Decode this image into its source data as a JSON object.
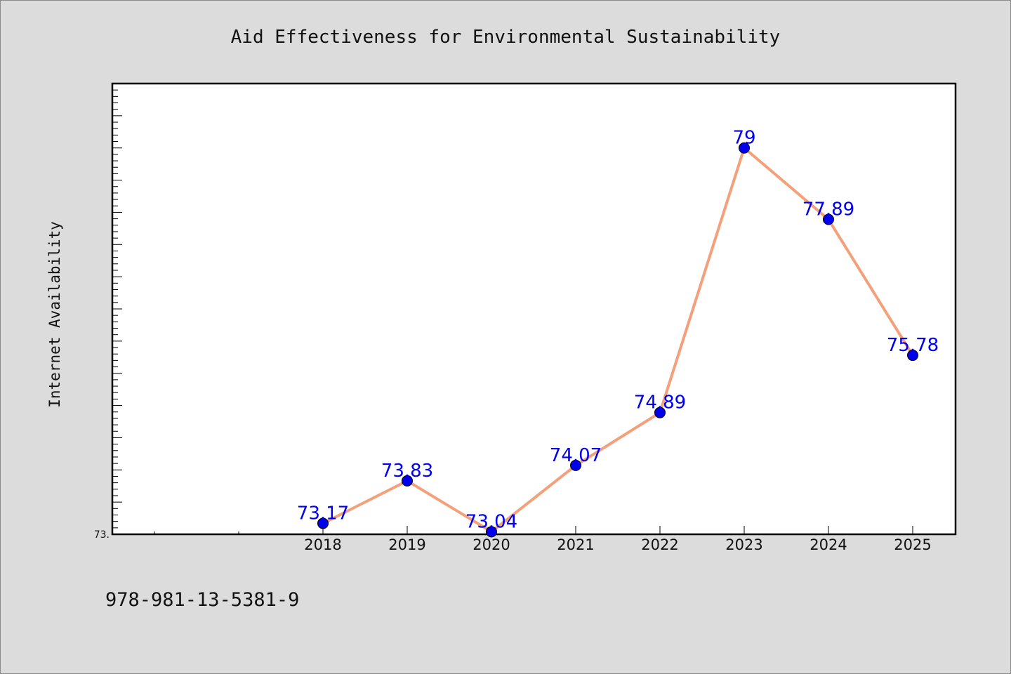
{
  "chart_data": {
    "type": "line",
    "title": "Aid Effectiveness for Environmental Sustainability",
    "xlabel": "",
    "ylabel": "Internet Availability",
    "categories": [
      "2018",
      "2019",
      "2020",
      "2021",
      "2022",
      "2023",
      "2024",
      "2025"
    ],
    "series": [
      {
        "values": [
          73.17,
          73.83,
          73.04,
          74.07,
          74.89,
          79,
          77.89,
          75.78
        ],
        "data_labels": [
          "73.17",
          "73.83",
          "73.04",
          "74.07",
          "74.89",
          "79",
          "77.89",
          "75.78"
        ]
      }
    ],
    "ylim": [
      73.0,
      80.0
    ],
    "y_tick_labels": [
      "73."
    ],
    "grid": false,
    "line_color": "#f4a07a",
    "marker_color": "#0000ee",
    "label_color": "#0000ee"
  },
  "footer": {
    "text": "978-981-13-5381-9"
  }
}
